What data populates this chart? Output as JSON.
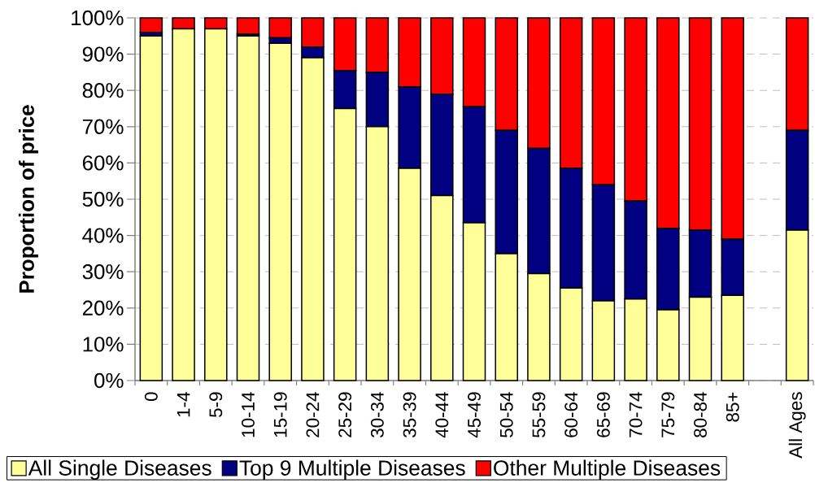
{
  "chart_data": {
    "type": "bar",
    "stacked": true,
    "ylabel": "Proportion of price",
    "categories": [
      "0",
      "1-4",
      "5-9",
      "10-14",
      "15-19",
      "20-24",
      "25-29",
      "30-34",
      "35-39",
      "40-44",
      "45-49",
      "50-54",
      "55-59",
      "60-64",
      "65-69",
      "70-74",
      "75-79",
      "80-84",
      "85+",
      null,
      "All Ages"
    ],
    "series": [
      {
        "name": "All Single Diseases",
        "color": "#ffff99",
        "values": [
          95,
          97,
          97,
          95,
          93,
          89,
          75,
          70,
          58.5,
          51,
          43.5,
          35,
          29.5,
          25.5,
          22,
          22.5,
          19.5,
          23,
          23.5,
          null,
          41.5
        ]
      },
      {
        "name": "Top 9 Multiple Diseases",
        "color": "#000080",
        "values": [
          1,
          0,
          0,
          0.5,
          1.5,
          3,
          10.5,
          15,
          22.5,
          28,
          32,
          34,
          34.5,
          33,
          32,
          27,
          22.5,
          18.5,
          15.5,
          null,
          27.5
        ]
      },
      {
        "name": "Other Multiple Diseases",
        "color": "#ff0000",
        "values": [
          4,
          3,
          3,
          4.5,
          5.5,
          8,
          14.5,
          15,
          19,
          21,
          24.5,
          31,
          36,
          41.5,
          46,
          50.5,
          58,
          58.5,
          61,
          null,
          31
        ]
      }
    ],
    "ylim": [
      0,
      100
    ],
    "yticks": [
      {
        "value": 0,
        "label": "0%"
      },
      {
        "value": 10,
        "label": "10%"
      },
      {
        "value": 20,
        "label": "20%"
      },
      {
        "value": 30,
        "label": "30%"
      },
      {
        "value": 40,
        "label": "40%"
      },
      {
        "value": 50,
        "label": "50%"
      },
      {
        "value": 60,
        "label": "60%"
      },
      {
        "value": 70,
        "label": "70%"
      },
      {
        "value": 80,
        "label": "80%"
      },
      {
        "value": 90,
        "label": "90%"
      },
      {
        "value": 100,
        "label": "100%"
      }
    ],
    "grid": "y",
    "legend": "bottom"
  }
}
